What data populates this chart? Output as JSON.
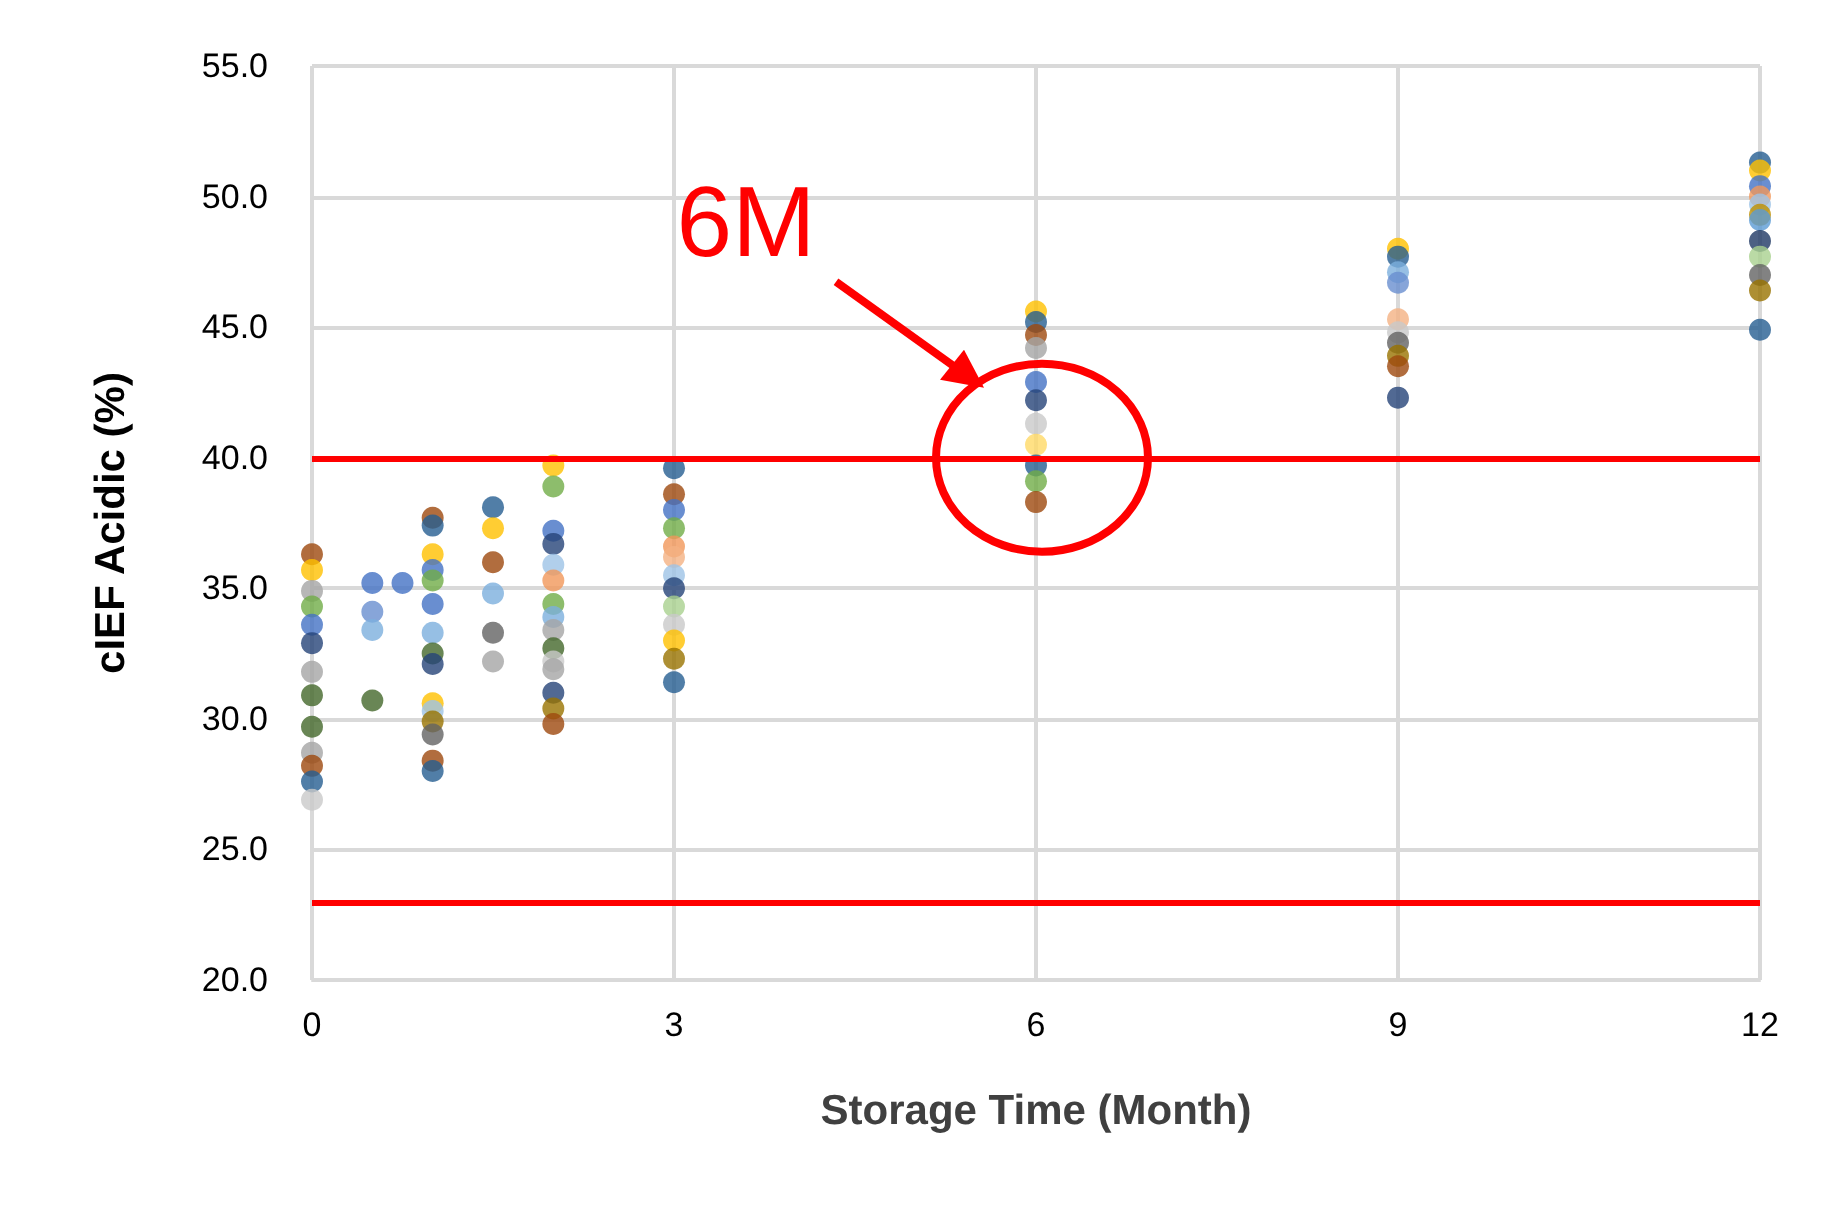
{
  "chart_data": {
    "type": "scatter",
    "xlabel": "Storage Time (Month)",
    "ylabel": "cIEF Acidic (%)",
    "xlim": [
      0,
      12
    ],
    "xticks": [
      0,
      3,
      6,
      9,
      12
    ],
    "ylim": [
      20,
      55
    ],
    "yticks": [
      {
        "value": 20,
        "label": "20.0"
      },
      {
        "value": 25,
        "label": "25.0"
      },
      {
        "value": 30,
        "label": "30.0"
      },
      {
        "value": 35,
        "label": "35.0"
      },
      {
        "value": 40,
        "label": "40.0"
      },
      {
        "value": 45,
        "label": "45.0"
      },
      {
        "value": 50,
        "label": "50.0"
      },
      {
        "value": 55,
        "label": "55.0"
      }
    ],
    "grid": true,
    "marker": "circle",
    "series": [
      {
        "x": [
          0,
          0,
          0,
          0,
          0,
          0,
          0,
          0,
          0,
          0,
          0,
          0,
          0,
          0.5,
          0.5,
          0.5,
          0.5,
          0.75,
          1,
          1,
          1,
          1,
          1,
          1,
          1,
          1,
          1,
          1,
          1,
          1,
          1,
          1,
          1,
          1.5,
          1.5,
          1.5,
          1.5,
          1.5,
          1.5,
          2,
          2,
          2,
          2,
          2,
          2,
          2,
          2,
          2,
          2,
          2,
          2,
          2,
          2,
          2,
          3,
          3,
          3,
          3,
          3,
          3,
          3,
          3,
          3,
          3,
          3,
          3,
          3,
          6,
          6,
          6,
          6,
          6,
          6,
          6,
          6,
          6,
          6,
          6,
          9,
          9,
          9,
          9,
          9,
          9,
          9,
          9,
          9,
          9,
          12,
          12,
          12,
          12,
          12,
          12,
          12,
          12,
          12,
          12,
          12,
          12
        ],
        "values": [
          36.3,
          35.7,
          34.9,
          34.3,
          33.6,
          32.9,
          31.8,
          30.9,
          29.7,
          28.7,
          28.2,
          27.6,
          26.9,
          35.2,
          34.1,
          33.4,
          30.7,
          35.2,
          37.7,
          37.4,
          36.3,
          35.7,
          35.3,
          34.4,
          33.3,
          32.5,
          32.1,
          30.6,
          30.3,
          29.9,
          29.4,
          28.4,
          28.0,
          38.1,
          37.3,
          36.0,
          34.8,
          33.3,
          32.2,
          39.7,
          38.9,
          37.2,
          36.7,
          35.9,
          35.3,
          34.4,
          33.9,
          33.4,
          32.7,
          32.2,
          31.9,
          31.0,
          30.4,
          29.8,
          39.6,
          38.6,
          38.0,
          37.3,
          36.6,
          36.2,
          35.5,
          35.0,
          34.3,
          33.6,
          33.0,
          32.3,
          31.4,
          45.6,
          45.2,
          44.7,
          44.2,
          42.9,
          42.2,
          41.3,
          40.5,
          39.7,
          39.1,
          38.3,
          48.0,
          47.7,
          47.1,
          46.7,
          45.3,
          44.8,
          44.4,
          43.9,
          43.5,
          42.3,
          51.3,
          51.0,
          50.4,
          50.0,
          49.7,
          49.3,
          49.1,
          48.3,
          47.7,
          47.0,
          46.4,
          44.9
        ],
        "colors": [
          "#9e480e",
          "#ffc000",
          "#a5a5a5",
          "#70ad47",
          "#4472c4",
          "#264478",
          "#a5a5a5",
          "#43682b",
          "#43682b",
          "#a5a5a5",
          "#9e480e",
          "#255e91",
          "#c9c9c9",
          "#4472c4",
          "#698ed0",
          "#7cafdd",
          "#43682b",
          "#4472c4",
          "#9e480e",
          "#255e91",
          "#ffc000",
          "#4472c4",
          "#70ad47",
          "#4472c4",
          "#7cafdd",
          "#43682b",
          "#264478",
          "#ffc000",
          "#9dc3e6",
          "#997300",
          "#636363",
          "#9e480e",
          "#255e91",
          "#255e91",
          "#ffc000",
          "#9e480e",
          "#7cafdd",
          "#636363",
          "#a5a5a5",
          "#ffc000",
          "#70ad47",
          "#4472c4",
          "#264478",
          "#9dc3e6",
          "#f1975a",
          "#70ad47",
          "#7cafdd",
          "#a5a5a5",
          "#43682b",
          "#c9c9c9",
          "#a5a5a5",
          "#264478",
          "#997300",
          "#9e480e",
          "#255e91",
          "#9e480e",
          "#4472c4",
          "#70ad47",
          "#f1975a",
          "#f4b183",
          "#9dc3e6",
          "#264478",
          "#a9d18e",
          "#c9c9c9",
          "#ffc000",
          "#997300",
          "#255e91",
          "#ffc000",
          "#255e91",
          "#9e480e",
          "#a5a5a5",
          "#4472c4",
          "#264478",
          "#c9c9c9",
          "#ffd966",
          "#255e91",
          "#70ad47",
          "#9e480e",
          "#ffc000",
          "#255e91",
          "#7cafdd",
          "#698ed0",
          "#f4b183",
          "#c9c9c9",
          "#636363",
          "#997300",
          "#9e480e",
          "#264478",
          "#255e91",
          "#ffc000",
          "#4472c4",
          "#f1975a",
          "#9dc3e6",
          "#bf9000",
          "#5b9bd5",
          "#1f3864",
          "#a9d18e",
          "#636363",
          "#997300",
          "#255e91"
        ]
      }
    ],
    "ref_lines": [
      {
        "axis": "y",
        "value": 40,
        "color": "#ff0000"
      },
      {
        "axis": "y",
        "value": 23,
        "color": "#ff0000"
      }
    ],
    "annotations": [
      {
        "text": "6M",
        "x": 6,
        "y": 40
      }
    ]
  }
}
